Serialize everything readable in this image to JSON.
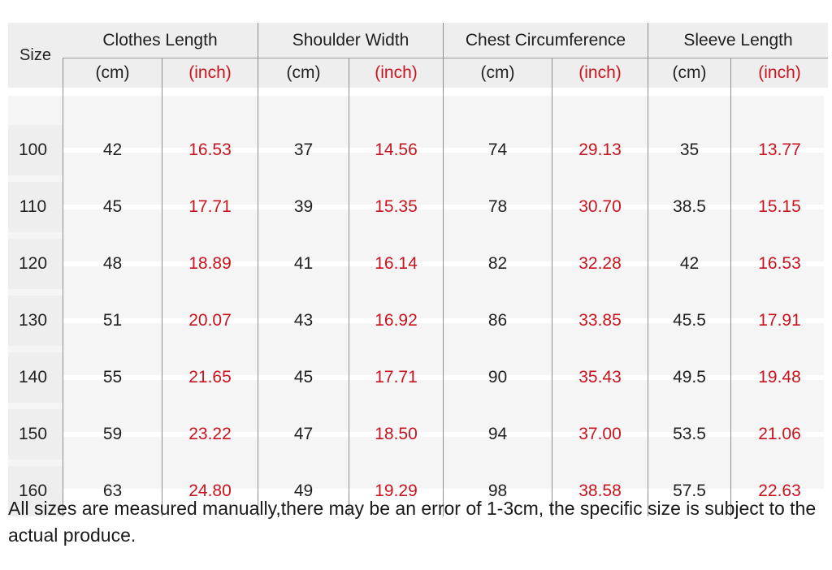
{
  "table": {
    "size_label": "Size",
    "groups": [
      "Clothes Length",
      "Shoulder Width",
      "Chest Circumference",
      "Sleeve Length"
    ],
    "unit_cm": "(cm)",
    "unit_inch": "(inch)",
    "rows": [
      {
        "size": "100",
        "values": [
          "42",
          "16.53",
          "37",
          "14.56",
          "74",
          "29.13",
          "35",
          "13.77"
        ]
      },
      {
        "size": "110",
        "values": [
          "45",
          "17.71",
          "39",
          "15.35",
          "78",
          "30.70",
          "38.5",
          "15.15"
        ]
      },
      {
        "size": "120",
        "values": [
          "48",
          "18.89",
          "41",
          "16.14",
          "82",
          "32.28",
          "42",
          "16.53"
        ]
      },
      {
        "size": "130",
        "values": [
          "51",
          "20.07",
          "43",
          "16.92",
          "86",
          "33.85",
          "45.5",
          "17.91"
        ]
      },
      {
        "size": "140",
        "values": [
          "55",
          "21.65",
          "45",
          "17.71",
          "90",
          "35.43",
          "49.5",
          "19.48"
        ]
      },
      {
        "size": "150",
        "values": [
          "59",
          "23.22",
          "47",
          "18.50",
          "94",
          "37.00",
          "53.5",
          "21.06"
        ]
      },
      {
        "size": "160",
        "values": [
          "63",
          "24.80",
          "49",
          "19.29",
          "98",
          "38.58",
          "57.5",
          "22.63"
        ]
      }
    ]
  },
  "note": "All sizes are measured manually,there may be an error of 1-3cm, the specific size is subject to the actual produce.",
  "colors": {
    "inch_text": "#c8141e",
    "header_bg": "#eeeeee",
    "row_bg": "#f5f5f5"
  }
}
